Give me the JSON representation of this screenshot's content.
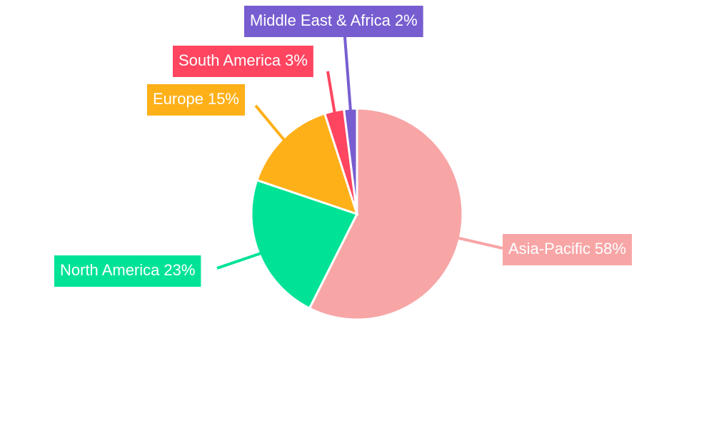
{
  "chart_data": {
    "type": "pie",
    "categories": [
      "Asia-Pacific",
      "North America",
      "Europe",
      "South America",
      "Middle East & Africa"
    ],
    "values": [
      58,
      23,
      15,
      3,
      2
    ],
    "value_labels": [
      "58%",
      "23%",
      "15%",
      "3%",
      "2%"
    ],
    "colors": [
      "#f8a5a6",
      "#00e396",
      "#feb019",
      "#ff4560",
      "#775dd0"
    ]
  }
}
